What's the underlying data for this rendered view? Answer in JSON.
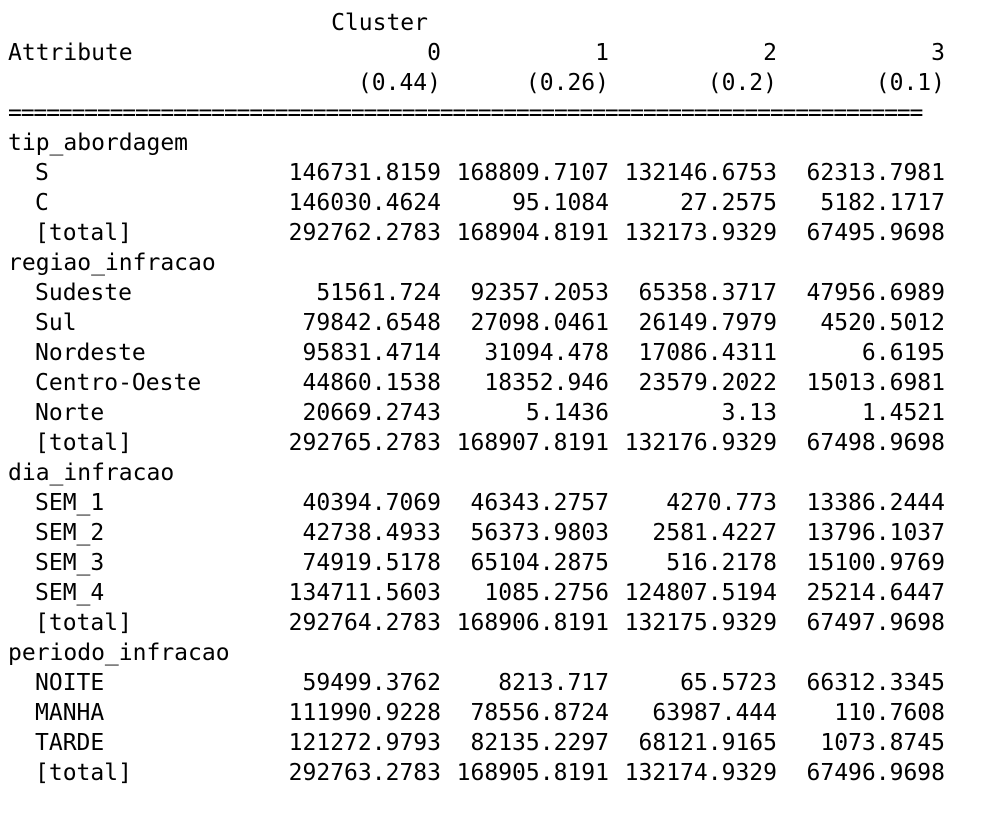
{
  "header": {
    "cluster_word": "Cluster",
    "attribute_label": "Attribute",
    "cluster_ids": [
      "0",
      "1",
      "2",
      "3"
    ],
    "cluster_sizes": [
      "(0.44)",
      "(0.26)",
      "(0.2)",
      "(0.1)"
    ]
  },
  "separator": "========================================================================",
  "attributes": [
    {
      "name": "tip_abordagem",
      "rows": [
        {
          "label": "S",
          "values": [
            "146731.8159",
            "168809.7107",
            "132146.6753",
            "62313.7981"
          ]
        },
        {
          "label": "C",
          "values": [
            "146030.4624",
            "95.1084",
            "27.2575",
            "5182.1717"
          ]
        },
        {
          "label": "[total]",
          "values": [
            "292762.2783",
            "168904.8191",
            "132173.9329",
            "67495.9698"
          ]
        }
      ]
    },
    {
      "name": "regiao_infracao",
      "rows": [
        {
          "label": "Sudeste",
          "values": [
            "51561.724",
            "92357.2053",
            "65358.3717",
            "47956.6989"
          ]
        },
        {
          "label": "Sul",
          "values": [
            "79842.6548",
            "27098.0461",
            "26149.7979",
            "4520.5012"
          ]
        },
        {
          "label": "Nordeste",
          "values": [
            "95831.4714",
            "31094.478",
            "17086.4311",
            "6.6195"
          ]
        },
        {
          "label": "Centro-Oeste",
          "values": [
            "44860.1538",
            "18352.946",
            "23579.2022",
            "15013.6981"
          ]
        },
        {
          "label": "Norte",
          "values": [
            "20669.2743",
            "5.1436",
            "3.13",
            "1.4521"
          ]
        },
        {
          "label": "[total]",
          "values": [
            "292765.2783",
            "168907.8191",
            "132176.9329",
            "67498.9698"
          ]
        }
      ]
    },
    {
      "name": "dia_infracao",
      "rows": [
        {
          "label": "SEM_1",
          "values": [
            "40394.7069",
            "46343.2757",
            "4270.773",
            "13386.2444"
          ]
        },
        {
          "label": "SEM_2",
          "values": [
            "42738.4933",
            "56373.9803",
            "2581.4227",
            "13796.1037"
          ]
        },
        {
          "label": "SEM_3",
          "values": [
            "74919.5178",
            "65104.2875",
            "516.2178",
            "15100.9769"
          ]
        },
        {
          "label": "SEM_4",
          "values": [
            "134711.5603",
            "1085.2756",
            "124807.5194",
            "25214.6447"
          ]
        },
        {
          "label": "[total]",
          "values": [
            "292764.2783",
            "168906.8191",
            "132175.9329",
            "67497.9698"
          ]
        }
      ]
    },
    {
      "name": "periodo_infracao",
      "rows": [
        {
          "label": "NOITE",
          "values": [
            "59499.3762",
            "8213.717",
            "65.5723",
            "66312.3345"
          ]
        },
        {
          "label": "MANHA",
          "values": [
            "111990.9228",
            "78556.8724",
            "63987.444",
            "110.7608"
          ]
        },
        {
          "label": "TARDE",
          "values": [
            "121272.9793",
            "82135.2297",
            "68121.9165",
            "1073.8745"
          ]
        },
        {
          "label": "[total]",
          "values": [
            "292763.2783",
            "168905.8191",
            "132174.9329",
            "67496.9698"
          ]
        }
      ]
    }
  ]
}
